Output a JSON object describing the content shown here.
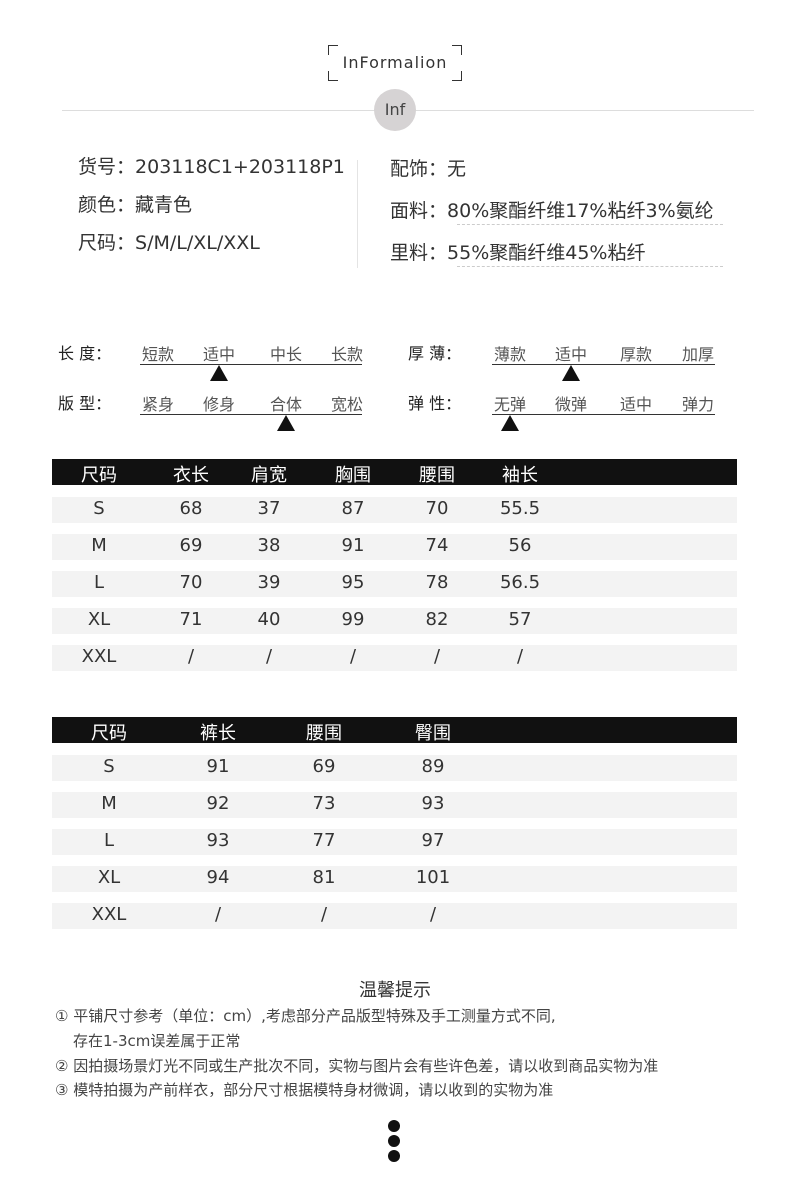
{
  "header": {
    "title": "InFormalion",
    "badge": "Inf"
  },
  "info": {
    "left": [
      {
        "label": "货号：",
        "value": "203118C1+203118P1"
      },
      {
        "label": "颜色：",
        "value": "藏青色"
      },
      {
        "label": "尺码：",
        "value": "S/M/L/XL/XXL"
      }
    ],
    "right": [
      {
        "label": "配饰：",
        "value": "无"
      },
      {
        "label": "面料：",
        "value": "80%聚酯纤维17%粘纤3%氨纶"
      },
      {
        "label": "里料：",
        "value": "55%聚酯纤维45%粘纤"
      }
    ]
  },
  "scales": [
    {
      "label": "长 度：",
      "options": [
        "短款",
        "适中",
        "中长",
        "长款"
      ],
      "selected": 1
    },
    {
      "label": "厚 薄：",
      "options": [
        "薄款",
        "适中",
        "厚款",
        "加厚"
      ],
      "selected": 1
    },
    {
      "label": "版 型：",
      "options": [
        "紧身",
        "修身",
        "合体",
        "宽松"
      ],
      "selected": 2
    },
    {
      "label": "弹 性：",
      "options": [
        "无弹",
        "微弹",
        "适中",
        "弹力"
      ],
      "selected": 0
    }
  ],
  "top_table": {
    "headers": [
      "尺码",
      "衣长",
      "肩宽",
      "胸围",
      "腰围",
      "袖长"
    ],
    "rows": [
      [
        "S",
        "68",
        "37",
        "87",
        "70",
        "55.5"
      ],
      [
        "M",
        "69",
        "38",
        "91",
        "74",
        "56"
      ],
      [
        "L",
        "70",
        "39",
        "95",
        "78",
        "56.5"
      ],
      [
        "XL",
        "71",
        "40",
        "99",
        "82",
        "57"
      ],
      [
        "XXL",
        "/",
        "/",
        "/",
        "/",
        "/"
      ]
    ]
  },
  "bottom_table": {
    "headers": [
      "尺码",
      "裤长",
      "腰围",
      "臀围"
    ],
    "rows": [
      [
        "S",
        "91",
        "69",
        "89"
      ],
      [
        "M",
        "92",
        "73",
        "93"
      ],
      [
        "L",
        "93",
        "77",
        "97"
      ],
      [
        "XL",
        "94",
        "81",
        "101"
      ],
      [
        "XXL",
        "/",
        "/",
        "/"
      ]
    ]
  },
  "notes": {
    "title": "温馨提示",
    "items": [
      "① 平铺尺寸参考（单位：cm）,考虑部分产品版型特殊及手工测量方式不同,",
      "存在1-3cm误差属于正常",
      "② 因拍摄场景灯光不同或生产批次不同，实物与图片会有些许色差，请以收到商品实物为准",
      "③ 模特拍摄为产前样衣，部分尺寸根据模特身材微调，请以收到的实物为准"
    ]
  }
}
